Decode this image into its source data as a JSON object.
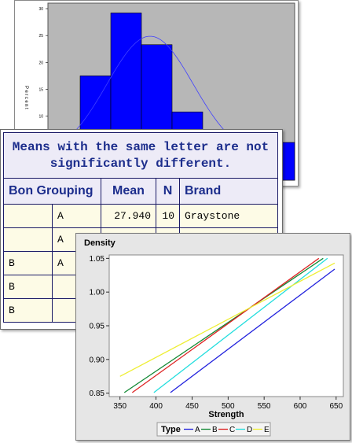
{
  "histogram": {
    "chart_data": {
      "type": "bar",
      "ylabel": "Percent",
      "y_ticks": [
        "30",
        "25",
        "20",
        "15",
        "10"
      ],
      "values": [
        17.5,
        29.2,
        23.3,
        10.8,
        1.7,
        2.5
      ],
      "ylim": [
        0,
        30
      ],
      "fit_curve": "normal",
      "colors": {
        "bar": "#0000ff",
        "plot_bg": "#b7b7b7",
        "curve": "#4040ff"
      }
    }
  },
  "means_table": {
    "title": "Means with the same letter are not significantly different.",
    "title_line1": "Means with the same letter are not",
    "title_line2": "significantly different.",
    "headers": {
      "grouping": "Bon Grouping",
      "mean": "Mean",
      "n": "N",
      "brand": "Brand"
    },
    "rows": [
      {
        "g1": "",
        "g2": "A",
        "mean": "27.940",
        "n": "10",
        "brand": "Graystone"
      },
      {
        "g1": "",
        "g2": "A",
        "mean": "",
        "n": "",
        "brand": ""
      },
      {
        "g1": "B",
        "g2": "A",
        "mean": "",
        "n": "",
        "brand": ""
      },
      {
        "g1": "B",
        "g2": "",
        "mean": "",
        "n": "",
        "brand": ""
      },
      {
        "g1": "B",
        "g2": "",
        "mean": "",
        "n": "",
        "brand": ""
      }
    ]
  },
  "density_plot": {
    "chart_data": {
      "type": "line",
      "ylabel": "Density",
      "xlabel": "Strength",
      "x_ticks": [
        350,
        400,
        450,
        500,
        550,
        600,
        650
      ],
      "y_ticks": [
        "1.05",
        "1.00",
        "0.95",
        "0.90",
        "0.85"
      ],
      "xlim": [
        335,
        660
      ],
      "ylim": [
        0.845,
        1.055
      ],
      "legend_title": "Type",
      "legend_position": "bottom",
      "series": [
        {
          "name": "A",
          "color": "#2222dd",
          "x": [
            420,
            648
          ],
          "y": [
            0.851,
            1.034
          ]
        },
        {
          "name": "B",
          "color": "#118833",
          "x": [
            356,
            632
          ],
          "y": [
            0.851,
            1.05
          ]
        },
        {
          "name": "C",
          "color": "#dd2222",
          "x": [
            367,
            626
          ],
          "y": [
            0.851,
            1.05
          ]
        },
        {
          "name": "D",
          "color": "#22dddd",
          "x": [
            397,
            638
          ],
          "y": [
            0.851,
            1.05
          ]
        },
        {
          "name": "E",
          "color": "#eeee33",
          "x": [
            350,
            648
          ],
          "y": [
            0.875,
            1.043
          ]
        }
      ]
    }
  }
}
